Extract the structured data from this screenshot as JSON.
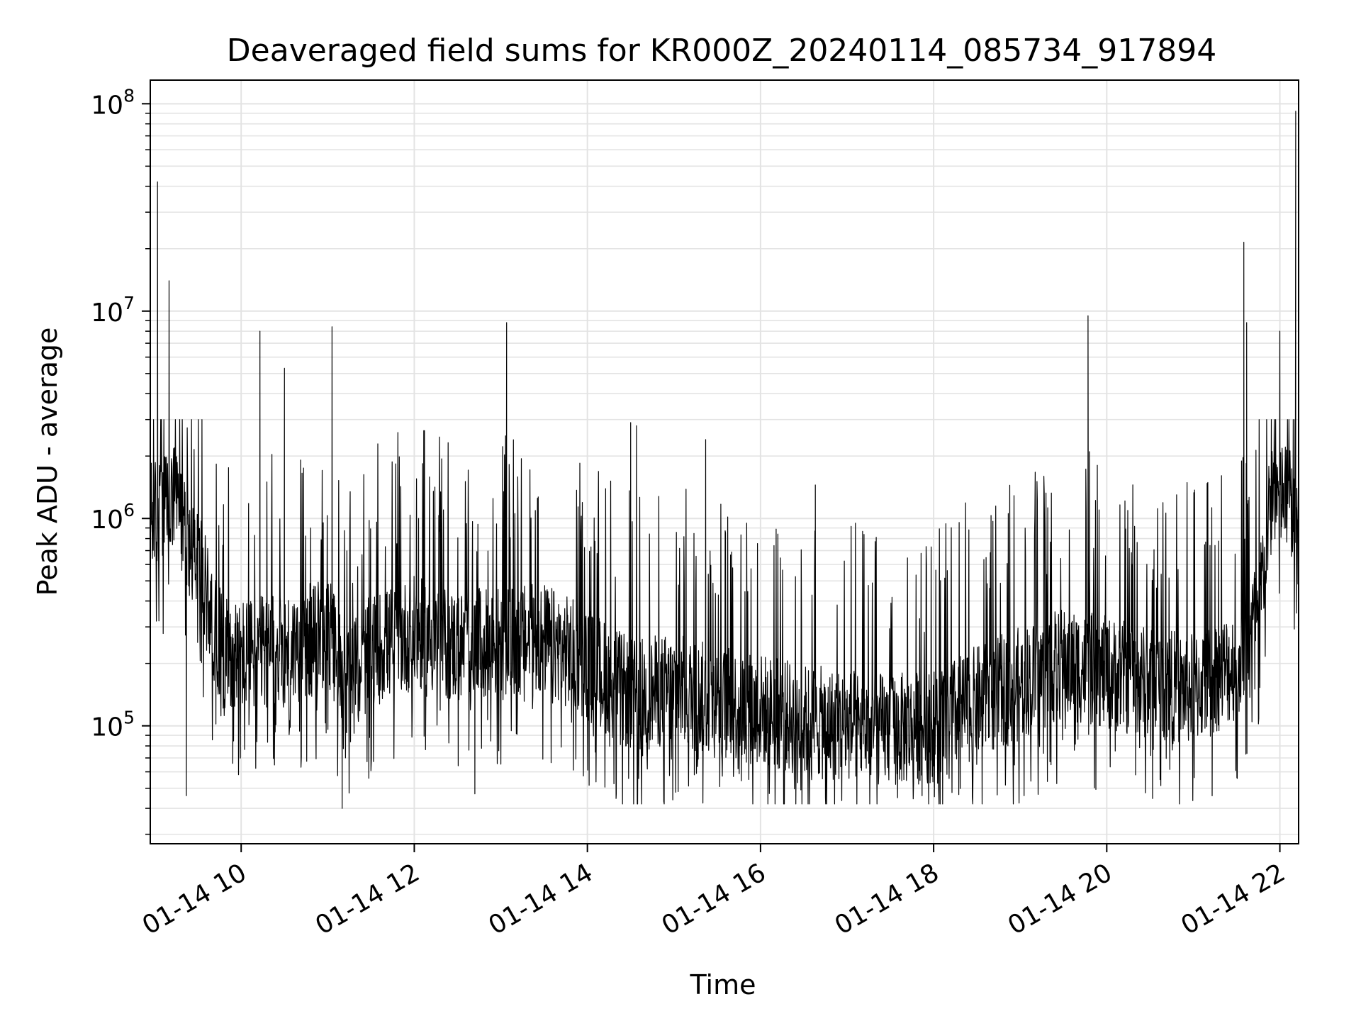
{
  "chart_data": {
    "type": "line",
    "title": "Deaveraged field sums for KR000Z_20240114_085734_917894",
    "xlabel": "Time",
    "ylabel": "Peak ADU - average",
    "yscale": "log",
    "ylim": [
      27000,
      130000000
    ],
    "xlim": [
      "01-14 08:57",
      "01-14 22:13"
    ],
    "grid": true,
    "legend": "none",
    "line_color": "#000000",
    "x_ticks": [
      "01-14 10",
      "01-14 12",
      "01-14 14",
      "01-14 16",
      "01-14 18",
      "01-14 20",
      "01-14 22"
    ],
    "y_ticks": [
      {
        "base": "10",
        "exp": "5",
        "value": 100000
      },
      {
        "base": "10",
        "exp": "6",
        "value": 1000000
      },
      {
        "base": "10",
        "exp": "7",
        "value": 10000000
      },
      {
        "base": "10",
        "exp": "8",
        "value": 100000000
      }
    ],
    "baseline": [
      [
        "01-14 08:57",
        1000000
      ],
      [
        "01-14 09:15",
        1200000
      ],
      [
        "01-14 09:30",
        600000
      ],
      [
        "01-14 09:45",
        250000
      ],
      [
        "01-14 10:00",
        220000
      ],
      [
        "01-14 10:30",
        230000
      ],
      [
        "01-14 11:00",
        280000
      ],
      [
        "01-14 11:15",
        160000
      ],
      [
        "01-14 11:30",
        230000
      ],
      [
        "01-14 12:00",
        280000
      ],
      [
        "01-14 12:30",
        240000
      ],
      [
        "01-14 13:00",
        250000
      ],
      [
        "01-14 13:30",
        260000
      ],
      [
        "01-14 14:00",
        200000
      ],
      [
        "01-14 14:30",
        140000
      ],
      [
        "01-14 15:00",
        150000
      ],
      [
        "01-14 15:30",
        130000
      ],
      [
        "01-14 16:00",
        120000
      ],
      [
        "01-14 16:30",
        105000
      ],
      [
        "01-14 17:00",
        100000
      ],
      [
        "01-14 17:30",
        95000
      ],
      [
        "01-14 18:00",
        100000
      ],
      [
        "01-14 18:30",
        130000
      ],
      [
        "01-14 19:00",
        160000
      ],
      [
        "01-14 19:30",
        200000
      ],
      [
        "01-14 20:00",
        180000
      ],
      [
        "01-14 20:30",
        160000
      ],
      [
        "01-14 21:00",
        150000
      ],
      [
        "01-14 21:30",
        200000
      ],
      [
        "01-14 21:45",
        350000
      ],
      [
        "01-14 21:55",
        1400000
      ],
      [
        "01-14 22:13",
        1100000
      ]
    ],
    "spikes": [
      [
        "01-14 09:02",
        42000000
      ],
      [
        "01-14 09:10",
        14000000
      ],
      [
        "01-14 10:13",
        8000000
      ],
      [
        "01-14 10:30",
        5300000
      ],
      [
        "01-14 11:03",
        8400000
      ],
      [
        "01-14 12:03",
        1000000
      ],
      [
        "01-14 13:04",
        8800000
      ],
      [
        "01-14 14:30",
        2900000
      ],
      [
        "01-14 14:34",
        2800000
      ],
      [
        "01-14 15:22",
        2400000
      ],
      [
        "01-14 16:38",
        1450000
      ],
      [
        "01-14 19:47",
        9500000
      ],
      [
        "01-14 19:48",
        2100000
      ],
      [
        "01-14 21:35",
        21500000
      ],
      [
        "01-14 21:37",
        8800000
      ],
      [
        "01-14 22:00",
        8000000
      ],
      [
        "01-14 22:11",
        92000000
      ]
    ],
    "dips": [
      [
        "01-14 09:22",
        46000
      ],
      [
        "01-14 11:10",
        40000
      ],
      [
        "01-14 12:42",
        47000
      ],
      [
        "01-14 14:20",
        47000
      ],
      [
        "01-14 16:45",
        45000
      ],
      [
        "01-14 17:35",
        45000
      ],
      [
        "01-14 17:52",
        46000
      ],
      [
        "01-14 20:20",
        58000
      ]
    ]
  }
}
